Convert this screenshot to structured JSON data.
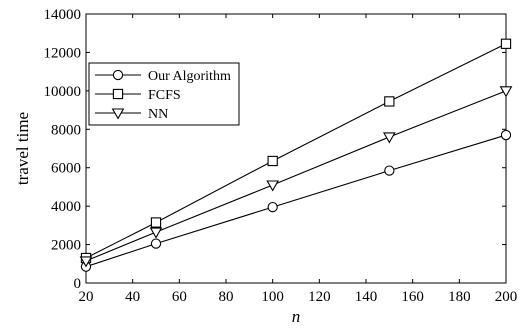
{
  "chart_data": {
    "type": "line",
    "title": "",
    "xlabel": "n",
    "ylabel": "travel time",
    "x": [
      20,
      50,
      100,
      150,
      200
    ],
    "xlim": [
      20,
      200
    ],
    "ylim": [
      0,
      14000
    ],
    "xticks": [
      20,
      40,
      60,
      80,
      100,
      120,
      140,
      160,
      180,
      200
    ],
    "yticks": [
      0,
      2000,
      4000,
      6000,
      8000,
      10000,
      12000,
      14000
    ],
    "grid": false,
    "legend_position": "upper-left",
    "series": [
      {
        "name": "Our Algorithm",
        "marker": "circle",
        "color": "#000000",
        "values": [
          850,
          2050,
          3950,
          5850,
          7700
        ]
      },
      {
        "name": "FCFS",
        "marker": "square",
        "color": "#000000",
        "values": [
          1300,
          3150,
          6350,
          9450,
          12450
        ]
      },
      {
        "name": "NN",
        "marker": "triangle-down",
        "color": "#000000",
        "values": [
          1150,
          2650,
          5100,
          7600,
          10000
        ]
      }
    ]
  }
}
